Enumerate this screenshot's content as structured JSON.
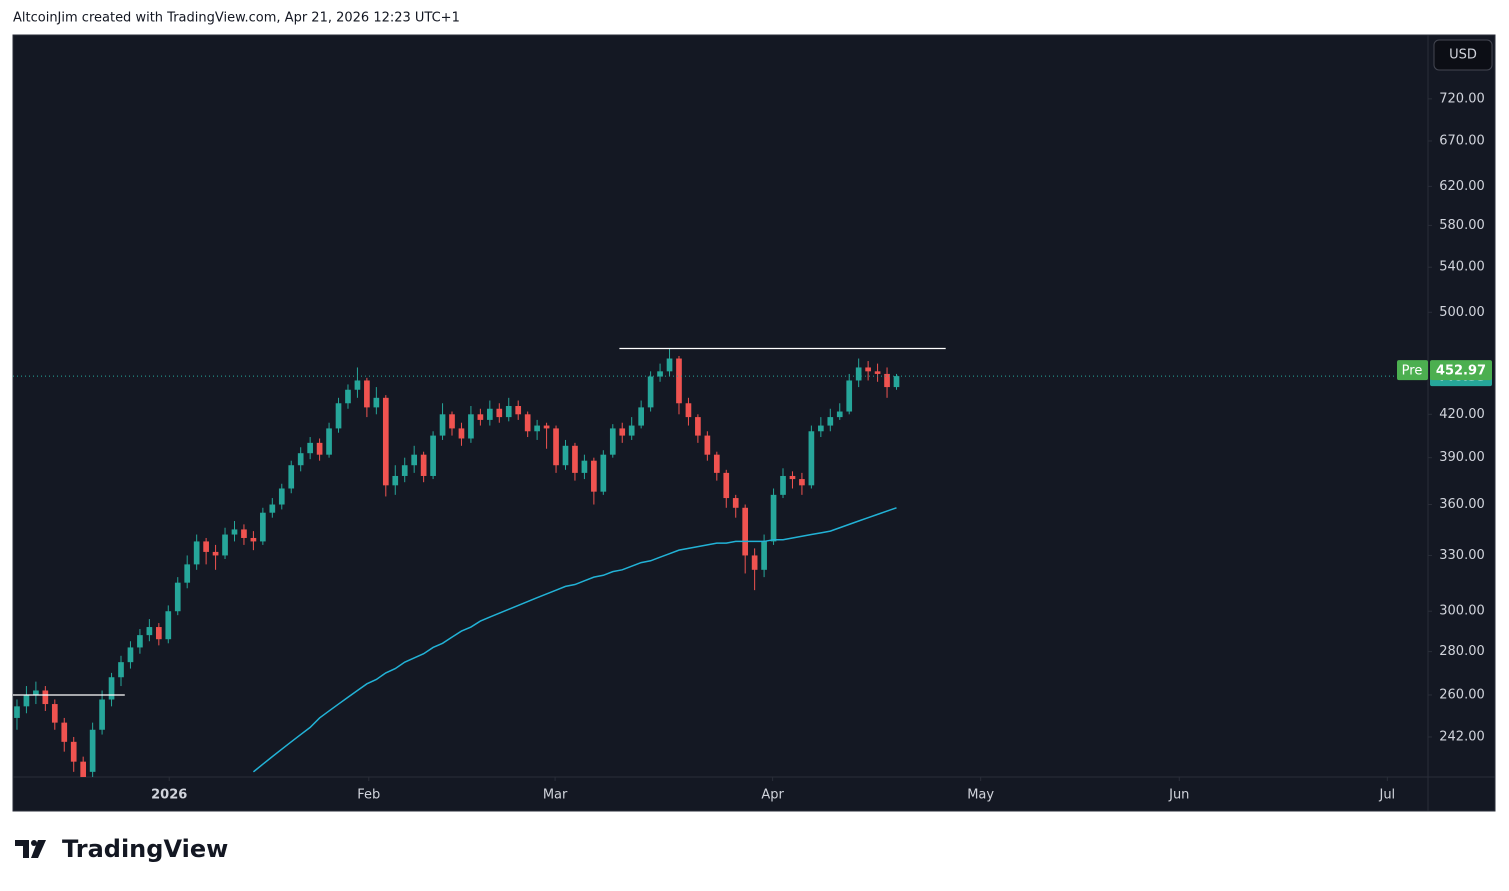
{
  "header": "AltcoinJim created with TradingView.com, Apr 21, 2026 12:23 UTC+1",
  "currency": "USD",
  "brand": "TradingView",
  "chart_data": {
    "type": "candlestick",
    "log_scale": true,
    "up_color": "#26a69a",
    "down_color": "#ef5350",
    "open": [
      250,
      255,
      260,
      262,
      256,
      248,
      240,
      232,
      228,
      245,
      258,
      268,
      275,
      282,
      288,
      292,
      286,
      300,
      315,
      325,
      338,
      332,
      330,
      342,
      345,
      340,
      338,
      355,
      360,
      370,
      385,
      393,
      400,
      392,
      410,
      428,
      438,
      445,
      425,
      432,
      372,
      378,
      385,
      392,
      378,
      405,
      420,
      410,
      403,
      420,
      416,
      424,
      418,
      426,
      420,
      408,
      412,
      410,
      385,
      398,
      380,
      388,
      368,
      392,
      410,
      405,
      412,
      425,
      448,
      452,
      462,
      428,
      418,
      405,
      392,
      380,
      364,
      358,
      330,
      322,
      338,
      366,
      378,
      376,
      372,
      408,
      412,
      418,
      422,
      445,
      455,
      452,
      450,
      440
    ],
    "high": [
      258,
      264,
      266,
      264,
      258,
      250,
      242,
      234,
      248,
      262,
      270,
      278,
      285,
      291,
      296,
      294,
      303,
      318,
      330,
      342,
      340,
      336,
      346,
      350,
      348,
      344,
      358,
      364,
      373,
      388,
      397,
      404,
      403,
      414,
      432,
      442,
      455,
      447,
      440,
      434,
      385,
      390,
      398,
      394,
      408,
      428,
      422,
      414,
      426,
      424,
      430,
      428,
      432,
      430,
      422,
      416,
      414,
      412,
      402,
      400,
      392,
      390,
      395,
      413,
      414,
      418,
      430,
      452,
      458,
      470,
      464,
      432,
      420,
      408,
      394,
      382,
      366,
      360,
      334,
      342,
      370,
      383,
      381,
      380,
      412,
      418,
      424,
      428,
      450,
      462,
      460,
      458,
      455,
      450
    ],
    "low": [
      245,
      252,
      256,
      253,
      245,
      236,
      228,
      222,
      226,
      243,
      255,
      264,
      272,
      279,
      285,
      283,
      284,
      298,
      312,
      322,
      325,
      322,
      328,
      338,
      336,
      333,
      336,
      352,
      357,
      367,
      381,
      389,
      388,
      390,
      407,
      424,
      432,
      418,
      420,
      365,
      366,
      374,
      380,
      374,
      376,
      402,
      405,
      398,
      400,
      412,
      412,
      414,
      415,
      416,
      404,
      402,
      396,
      380,
      382,
      375,
      376,
      360,
      366,
      390,
      400,
      402,
      410,
      422,
      444,
      448,
      420,
      412,
      400,
      388,
      375,
      358,
      352,
      320,
      311,
      318,
      336,
      364,
      370,
      366,
      370,
      404,
      408,
      416,
      420,
      440,
      445,
      444,
      432,
      438
    ],
    "close": [
      255,
      260,
      262,
      256,
      248,
      240,
      232,
      226,
      245,
      258,
      268,
      275,
      282,
      288,
      292,
      286,
      300,
      315,
      325,
      338,
      332,
      330,
      342,
      345,
      340,
      338,
      355,
      360,
      370,
      385,
      393,
      400,
      392,
      410,
      428,
      438,
      445,
      425,
      432,
      372,
      378,
      385,
      392,
      378,
      405,
      420,
      410,
      403,
      420,
      416,
      424,
      418,
      426,
      420,
      408,
      412,
      410,
      385,
      398,
      380,
      388,
      368,
      392,
      410,
      405,
      412,
      425,
      448,
      452,
      462,
      428,
      418,
      405,
      392,
      380,
      364,
      358,
      330,
      322,
      338,
      366,
      378,
      376,
      372,
      408,
      412,
      418,
      422,
      445,
      455,
      452,
      450,
      440,
      448.33
    ],
    "ma": {
      "color": "#22b2d6",
      "values": [
        null,
        null,
        null,
        null,
        null,
        null,
        null,
        null,
        null,
        null,
        null,
        null,
        null,
        null,
        null,
        null,
        null,
        null,
        null,
        null,
        null,
        null,
        null,
        null,
        null,
        228,
        231,
        234,
        237,
        240,
        243,
        246,
        250,
        253,
        256,
        259,
        262,
        265,
        267,
        270,
        272,
        275,
        277,
        279,
        282,
        284,
        287,
        290,
        292,
        295,
        297,
        299,
        301,
        303,
        305,
        307,
        309,
        311,
        313,
        314,
        316,
        318,
        319,
        321,
        322,
        324,
        326,
        327,
        329,
        331,
        333,
        334,
        335,
        336,
        337,
        337,
        338,
        338,
        338,
        338,
        339,
        339,
        340,
        341,
        342,
        343,
        344,
        346,
        348,
        350,
        352,
        354,
        356,
        358
      ]
    },
    "hlines": [
      {
        "value": 470,
        "x": [
          63.7,
          98.2
        ]
      },
      {
        "value": 260,
        "x": [
          -0.42,
          11.4
        ]
      }
    ],
    "pre_market": {
      "label": "Pre",
      "value": 452.97
    },
    "xlim": [
      -0.42,
      149.2
    ],
    "xticks": [
      {
        "value": 16.1,
        "label": "2026"
      },
      {
        "value": 37.2,
        "label": "Feb"
      },
      {
        "value": 56.9,
        "label": "Mar"
      },
      {
        "value": 79.9,
        "label": "Apr"
      },
      {
        "value": 101.9,
        "label": "May"
      },
      {
        "value": 122.9,
        "label": "Jun"
      },
      {
        "value": 144.9,
        "label": "Jul"
      }
    ],
    "ylim": [
      226,
      803
    ],
    "yticks": [
      {
        "value": 720,
        "label": "720.00"
      },
      {
        "value": 670,
        "label": "670.00"
      },
      {
        "value": 620,
        "label": "620.00"
      },
      {
        "value": 580,
        "label": "580.00"
      },
      {
        "value": 540,
        "label": "540.00"
      },
      {
        "value": 500,
        "label": "500.00"
      },
      {
        "value": 420,
        "label": "420.00"
      },
      {
        "value": 390,
        "label": "390.00"
      },
      {
        "value": 360,
        "label": "360.00"
      },
      {
        "value": 330,
        "label": "330.00"
      },
      {
        "value": 300,
        "label": "300.00"
      },
      {
        "value": 280,
        "label": "280.00"
      },
      {
        "value": 260,
        "label": "260.00"
      },
      {
        "value": 242,
        "label": "242.00"
      }
    ]
  }
}
